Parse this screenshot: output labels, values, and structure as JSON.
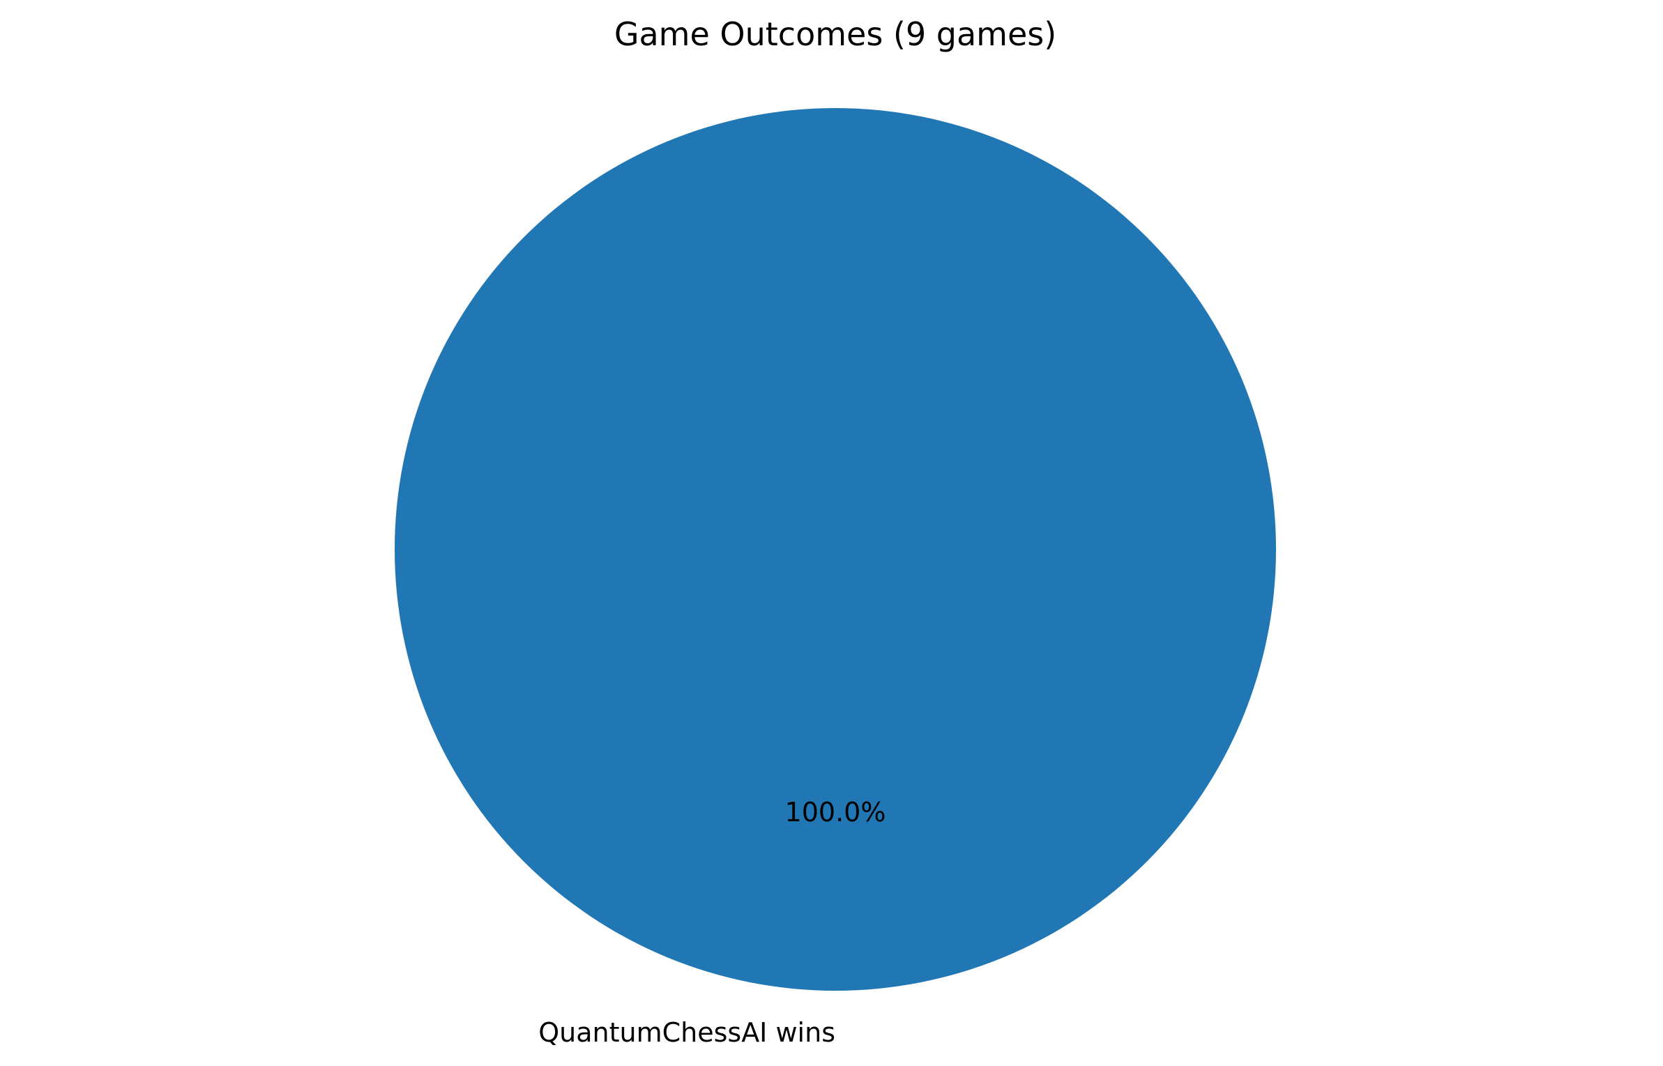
{
  "chart_data": {
    "type": "pie",
    "title": "Game Outcomes (9 games)",
    "slices": [
      {
        "label": "QuantumChessAI wins",
        "value": 9,
        "percent_label": "100.0%",
        "color": "#2077b4"
      }
    ]
  }
}
